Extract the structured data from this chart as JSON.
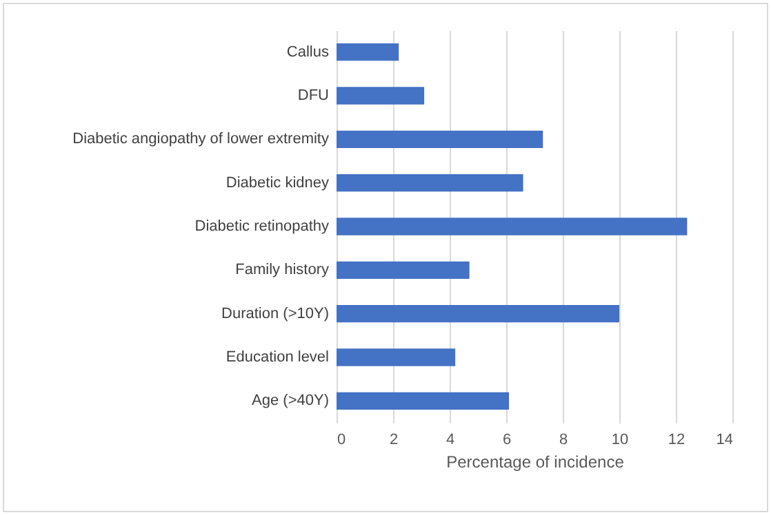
{
  "chart_data": {
    "type": "bar",
    "orientation": "horizontal",
    "xlabel": "Percentage of incidence",
    "categories": [
      "Callus",
      "DFU",
      "Diabetic angiopathy of lower extremity",
      "Diabetic kidney",
      "Diabetic retinopathy",
      "Family history",
      "Duration (>10Y)",
      "Education level",
      "Age (>40Y)"
    ],
    "values": [
      2.2,
      3.1,
      7.3,
      6.6,
      12.4,
      4.7,
      10,
      4.2,
      6.1
    ],
    "color": "#4472c4",
    "xlim": [
      0,
      14
    ],
    "xticks": [
      0,
      2,
      4,
      6,
      8,
      10,
      12,
      14
    ],
    "grid": "x"
  }
}
